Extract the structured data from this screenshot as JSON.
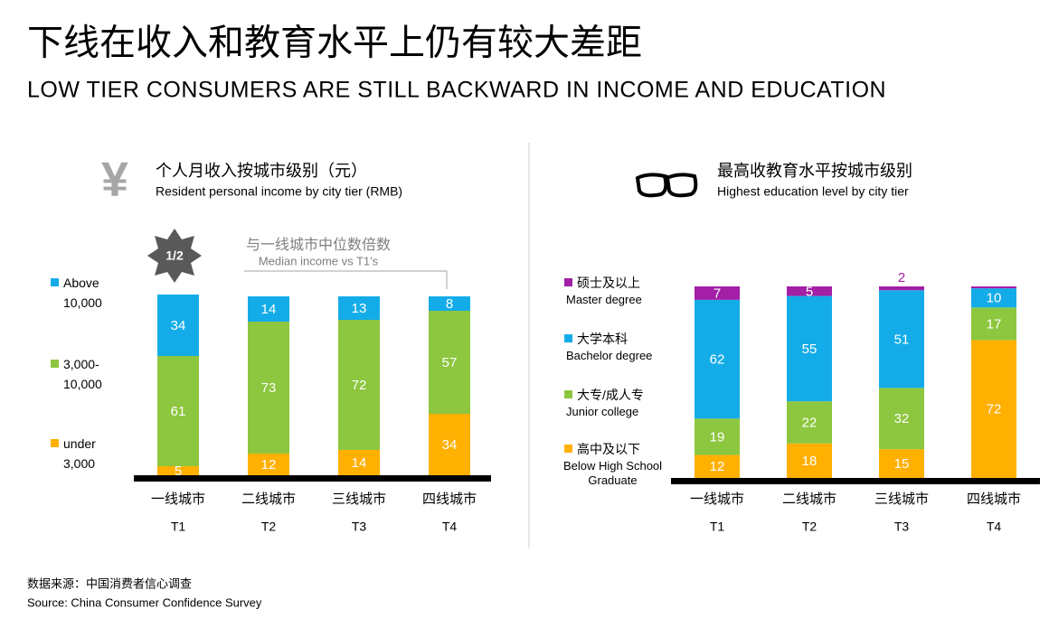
{
  "title": "下线在收入和教育水平上仍有较大差距",
  "subtitle": "LOW TIER CONSUMERS ARE STILL BACKWARD IN INCOME AND EDUCATION",
  "source": [
    "数据来源：中国消费者信心调查",
    "Source: China Consumer Confidence Survey"
  ],
  "chart_data": [
    {
      "type": "stacked-bar",
      "title": "个人月收入按城市级别（元）",
      "subtitle": "Resident personal income by city tier (RMB)",
      "annotation": {
        "badge": "1/2",
        "text": "与一线城市中位数倍数",
        "text_en": "Median income vs T1's"
      },
      "categories": [
        "一线城市",
        "二线城市",
        "三线城市",
        "四线城市"
      ],
      "category_codes": [
        "T1",
        "T2",
        "T3",
        "T4"
      ],
      "ylim": [
        0,
        100
      ],
      "series": [
        {
          "name": "under 3,000",
          "color": "#ffb000",
          "values": [
            5,
            12,
            14,
            34
          ]
        },
        {
          "name": "3,000-10,000",
          "color": "#8dc63f",
          "values": [
            61,
            73,
            72,
            57
          ]
        },
        {
          "name": "Above 10,000",
          "color": "#14ace8",
          "values": [
            34,
            14,
            13,
            8
          ]
        }
      ]
    },
    {
      "type": "stacked-bar",
      "title": "最高收教育水平按城市级别",
      "subtitle": "Highest education level by city tier",
      "categories": [
        "一线城市",
        "二线城市",
        "三线城市",
        "四线城市"
      ],
      "category_codes": [
        "T1",
        "T2",
        "T3",
        "T4"
      ],
      "ylim": [
        0,
        100
      ],
      "series": [
        {
          "name": "高中及以下",
          "label_en": "Below High School Graduate",
          "color": "#ffb000",
          "values": [
            12,
            18,
            15,
            72
          ]
        },
        {
          "name": "大专/成人专",
          "label_en": "Junior college",
          "color": "#8dc63f",
          "values": [
            19,
            22,
            32,
            17
          ]
        },
        {
          "name": "大学本科",
          "label_en": "Bachelor degree",
          "color": "#14ace8",
          "values": [
            62,
            55,
            51,
            10
          ]
        },
        {
          "name": "硕士及以上",
          "label_en": "Master degree",
          "color": "#a21fa6",
          "values": [
            7,
            5,
            2,
            1
          ],
          "value_labels": [
            "7",
            "5",
            "2",
            null
          ]
        }
      ]
    }
  ]
}
